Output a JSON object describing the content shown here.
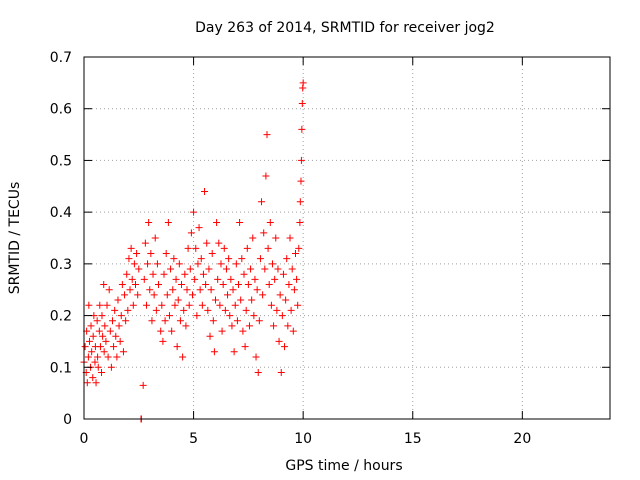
{
  "chart_data": {
    "type": "scatter",
    "title": "Day 263 of 2014, SRMTID for receiver jog2",
    "xlabel": "GPS time / hours",
    "ylabel": "SRMTID / TECUs",
    "xlim": [
      0,
      24
    ],
    "ylim": [
      0,
      0.7
    ],
    "xticks": [
      0,
      5,
      10,
      15,
      20
    ],
    "yticks": [
      0,
      0.1,
      0.2,
      0.3,
      0.4,
      0.5,
      0.6,
      0.7
    ],
    "xtick_labels": [
      "0",
      "5",
      "10",
      "15",
      "20"
    ],
    "ytick_labels": [
      "0",
      "0.1",
      "0.2",
      "0.3",
      "0.4",
      "0.5",
      "0.6",
      "0.7"
    ],
    "grid": true,
    "marker": "+",
    "color": "#ff0000",
    "points": [
      [
        0.0,
        0.11
      ],
      [
        0.05,
        0.14
      ],
      [
        0.1,
        0.09
      ],
      [
        0.12,
        0.17
      ],
      [
        0.15,
        0.07
      ],
      [
        0.2,
        0.12
      ],
      [
        0.22,
        0.22
      ],
      [
        0.25,
        0.15
      ],
      [
        0.3,
        0.1
      ],
      [
        0.32,
        0.18
      ],
      [
        0.35,
        0.13
      ],
      [
        0.4,
        0.08
      ],
      [
        0.42,
        0.16
      ],
      [
        0.45,
        0.2
      ],
      [
        0.5,
        0.11
      ],
      [
        0.52,
        0.14
      ],
      [
        0.55,
        0.07
      ],
      [
        0.6,
        0.19
      ],
      [
        0.62,
        0.12
      ],
      [
        0.65,
        0.1
      ],
      [
        0.7,
        0.17
      ],
      [
        0.72,
        0.22
      ],
      [
        0.75,
        0.14
      ],
      [
        0.8,
        0.09
      ],
      [
        0.82,
        0.2
      ],
      [
        0.85,
        0.16
      ],
      [
        0.9,
        0.26
      ],
      [
        0.92,
        0.13
      ],
      [
        0.95,
        0.18
      ],
      [
        1.0,
        0.15
      ],
      [
        1.05,
        0.22
      ],
      [
        1.1,
        0.12
      ],
      [
        1.15,
        0.25
      ],
      [
        1.2,
        0.17
      ],
      [
        1.25,
        0.1
      ],
      [
        1.3,
        0.19
      ],
      [
        1.35,
        0.14
      ],
      [
        1.4,
        0.21
      ],
      [
        1.45,
        0.16
      ],
      [
        1.5,
        0.12
      ],
      [
        1.55,
        0.23
      ],
      [
        1.6,
        0.18
      ],
      [
        1.65,
        0.15
      ],
      [
        1.7,
        0.2
      ],
      [
        1.75,
        0.26
      ],
      [
        1.8,
        0.13
      ],
      [
        1.85,
        0.24
      ],
      [
        1.9,
        0.19
      ],
      [
        1.95,
        0.28
      ],
      [
        2.0,
        0.21
      ],
      [
        2.05,
        0.31
      ],
      [
        2.1,
        0.25
      ],
      [
        2.15,
        0.33
      ],
      [
        2.2,
        0.27
      ],
      [
        2.25,
        0.22
      ],
      [
        2.3,
        0.3
      ],
      [
        2.35,
        0.26
      ],
      [
        2.4,
        0.32
      ],
      [
        2.45,
        0.24
      ],
      [
        2.5,
        0.29
      ],
      [
        2.6,
        0.0
      ],
      [
        2.62,
        0.0
      ],
      [
        2.7,
        0.065
      ],
      [
        2.75,
        0.27
      ],
      [
        2.8,
        0.34
      ],
      [
        2.85,
        0.22
      ],
      [
        2.9,
        0.3
      ],
      [
        2.95,
        0.38
      ],
      [
        3.0,
        0.25
      ],
      [
        3.05,
        0.32
      ],
      [
        3.1,
        0.19
      ],
      [
        3.15,
        0.28
      ],
      [
        3.2,
        0.24
      ],
      [
        3.25,
        0.35
      ],
      [
        3.3,
        0.21
      ],
      [
        3.35,
        0.3
      ],
      [
        3.4,
        0.26
      ],
      [
        3.5,
        0.17
      ],
      [
        3.55,
        0.22
      ],
      [
        3.6,
        0.15
      ],
      [
        3.65,
        0.28
      ],
      [
        3.7,
        0.19
      ],
      [
        3.75,
        0.32
      ],
      [
        3.8,
        0.24
      ],
      [
        3.85,
        0.38
      ],
      [
        3.9,
        0.2
      ],
      [
        3.95,
        0.29
      ],
      [
        4.0,
        0.17
      ],
      [
        4.05,
        0.25
      ],
      [
        4.1,
        0.31
      ],
      [
        4.15,
        0.22
      ],
      [
        4.2,
        0.27
      ],
      [
        4.25,
        0.14
      ],
      [
        4.3,
        0.23
      ],
      [
        4.35,
        0.3
      ],
      [
        4.4,
        0.19
      ],
      [
        4.45,
        0.26
      ],
      [
        4.5,
        0.12
      ],
      [
        4.55,
        0.21
      ],
      [
        4.6,
        0.28
      ],
      [
        4.65,
        0.18
      ],
      [
        4.7,
        0.25
      ],
      [
        4.75,
        0.33
      ],
      [
        4.8,
        0.22
      ],
      [
        4.85,
        0.29
      ],
      [
        4.9,
        0.36
      ],
      [
        4.95,
        0.24
      ],
      [
        5.0,
        0.4
      ],
      [
        5.05,
        0.27
      ],
      [
        5.1,
        0.33
      ],
      [
        5.15,
        0.2
      ],
      [
        5.2,
        0.3
      ],
      [
        5.25,
        0.37
      ],
      [
        5.3,
        0.25
      ],
      [
        5.35,
        0.31
      ],
      [
        5.4,
        0.22
      ],
      [
        5.45,
        0.28
      ],
      [
        5.5,
        0.44
      ],
      [
        5.55,
        0.26
      ],
      [
        5.6,
        0.34
      ],
      [
        5.65,
        0.21
      ],
      [
        5.7,
        0.29
      ],
      [
        5.75,
        0.16
      ],
      [
        5.8,
        0.25
      ],
      [
        5.85,
        0.32
      ],
      [
        5.9,
        0.19
      ],
      [
        5.95,
        0.13
      ],
      [
        6.0,
        0.23
      ],
      [
        6.05,
        0.38
      ],
      [
        6.1,
        0.27
      ],
      [
        6.15,
        0.34
      ],
      [
        6.2,
        0.22
      ],
      [
        6.25,
        0.3
      ],
      [
        6.3,
        0.17
      ],
      [
        6.35,
        0.26
      ],
      [
        6.4,
        0.33
      ],
      [
        6.45,
        0.21
      ],
      [
        6.5,
        0.29
      ],
      [
        6.55,
        0.24
      ],
      [
        6.6,
        0.31
      ],
      [
        6.65,
        0.2
      ],
      [
        6.7,
        0.27
      ],
      [
        6.75,
        0.18
      ],
      [
        6.8,
        0.25
      ],
      [
        6.85,
        0.13
      ],
      [
        6.9,
        0.22
      ],
      [
        6.95,
        0.3
      ],
      [
        7.0,
        0.19
      ],
      [
        7.05,
        0.26
      ],
      [
        7.1,
        0.38
      ],
      [
        7.15,
        0.23
      ],
      [
        7.2,
        0.31
      ],
      [
        7.25,
        0.17
      ],
      [
        7.3,
        0.28
      ],
      [
        7.35,
        0.14
      ],
      [
        7.4,
        0.21
      ],
      [
        7.45,
        0.33
      ],
      [
        7.5,
        0.26
      ],
      [
        7.55,
        0.18
      ],
      [
        7.6,
        0.29
      ],
      [
        7.65,
        0.23
      ],
      [
        7.7,
        0.35
      ],
      [
        7.75,
        0.2
      ],
      [
        7.8,
        0.27
      ],
      [
        7.85,
        0.12
      ],
      [
        7.9,
        0.25
      ],
      [
        7.95,
        0.09
      ],
      [
        8.0,
        0.19
      ],
      [
        8.05,
        0.31
      ],
      [
        8.1,
        0.42
      ],
      [
        8.15,
        0.24
      ],
      [
        8.2,
        0.36
      ],
      [
        8.25,
        0.29
      ],
      [
        8.3,
        0.47
      ],
      [
        8.35,
        0.55
      ],
      [
        8.4,
        0.33
      ],
      [
        8.45,
        0.26
      ],
      [
        8.5,
        0.38
      ],
      [
        8.55,
        0.22
      ],
      [
        8.6,
        0.3
      ],
      [
        8.65,
        0.18
      ],
      [
        8.7,
        0.27
      ],
      [
        8.75,
        0.35
      ],
      [
        8.8,
        0.21
      ],
      [
        8.85,
        0.29
      ],
      [
        8.9,
        0.15
      ],
      [
        8.95,
        0.24
      ],
      [
        9.0,
        0.09
      ],
      [
        9.05,
        0.2
      ],
      [
        9.1,
        0.28
      ],
      [
        9.15,
        0.14
      ],
      [
        9.2,
        0.23
      ],
      [
        9.25,
        0.31
      ],
      [
        9.3,
        0.18
      ],
      [
        9.35,
        0.26
      ],
      [
        9.4,
        0.35
      ],
      [
        9.45,
        0.21
      ],
      [
        9.5,
        0.29
      ],
      [
        9.55,
        0.17
      ],
      [
        9.6,
        0.25
      ],
      [
        9.65,
        0.32
      ],
      [
        9.7,
        0.27
      ],
      [
        9.75,
        0.22
      ],
      [
        9.8,
        0.33
      ],
      [
        9.85,
        0.38
      ],
      [
        9.87,
        0.42
      ],
      [
        9.9,
        0.46
      ],
      [
        9.92,
        0.5
      ],
      [
        9.94,
        0.56
      ],
      [
        9.96,
        0.61
      ],
      [
        9.98,
        0.64
      ],
      [
        10.0,
        0.65
      ]
    ]
  }
}
